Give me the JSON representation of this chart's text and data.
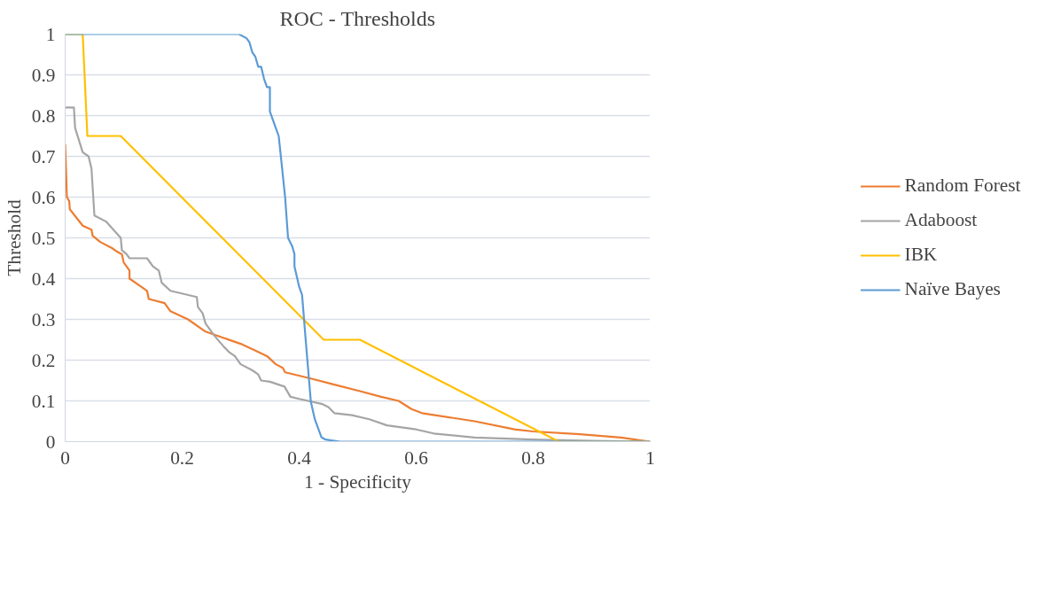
{
  "chart_data": {
    "type": "line",
    "title": "ROC - Thresholds",
    "xlabel": "1 - Specificity",
    "ylabel": "Threshold",
    "xlim": [
      0,
      1
    ],
    "ylim": [
      0,
      1
    ],
    "xticks": [
      0,
      0.2,
      0.4,
      0.6,
      0.8,
      1
    ],
    "yticks": [
      0,
      0.1,
      0.2,
      0.3,
      0.4,
      0.5,
      0.6,
      0.7,
      0.8,
      0.9,
      1
    ],
    "grid": "y",
    "legend": "right",
    "line_style": "solid",
    "series": [
      {
        "name": "Random Forest",
        "color": "#ed7d31",
        "x": [
          0,
          0.003,
          0.007,
          0.008,
          0.03,
          0.045,
          0.047,
          0.06,
          0.08,
          0.09,
          0.097,
          0.1,
          0.11,
          0.11,
          0.13,
          0.14,
          0.143,
          0.17,
          0.18,
          0.21,
          0.24,
          0.27,
          0.3,
          0.33,
          0.345,
          0.36,
          0.372,
          0.376,
          0.42,
          0.46,
          0.504,
          0.54,
          0.57,
          0.592,
          0.61,
          0.7,
          0.768,
          0.8,
          0.88,
          0.95,
          1
        ],
        "values": [
          0.73,
          0.6,
          0.59,
          0.57,
          0.53,
          0.52,
          0.505,
          0.49,
          0.475,
          0.465,
          0.46,
          0.44,
          0.42,
          0.4,
          0.38,
          0.37,
          0.35,
          0.34,
          0.32,
          0.3,
          0.27,
          0.255,
          0.24,
          0.22,
          0.21,
          0.19,
          0.181,
          0.17,
          0.155,
          0.14,
          0.124,
          0.11,
          0.1,
          0.08,
          0.07,
          0.05,
          0.03,
          0.025,
          0.018,
          0.01,
          0
        ]
      },
      {
        "name": "Adaboost",
        "color": "#a5a5a5",
        "x": [
          0,
          0.015,
          0.017,
          0.03,
          0.04,
          0.045,
          0.05,
          0.07,
          0.095,
          0.097,
          0.105,
          0.11,
          0.14,
          0.15,
          0.16,
          0.165,
          0.18,
          0.225,
          0.227,
          0.235,
          0.24,
          0.255,
          0.27,
          0.28,
          0.29,
          0.3,
          0.32,
          0.33,
          0.335,
          0.35,
          0.375,
          0.385,
          0.4,
          0.44,
          0.45,
          0.46,
          0.49,
          0.52,
          0.55,
          0.6,
          0.63,
          0.7,
          0.8,
          0.9,
          1
        ],
        "values": [
          0.82,
          0.82,
          0.77,
          0.71,
          0.7,
          0.67,
          0.555,
          0.54,
          0.5,
          0.47,
          0.46,
          0.45,
          0.45,
          0.43,
          0.42,
          0.39,
          0.37,
          0.355,
          0.33,
          0.315,
          0.29,
          0.26,
          0.235,
          0.22,
          0.21,
          0.19,
          0.175,
          0.165,
          0.15,
          0.147,
          0.135,
          0.11,
          0.105,
          0.092,
          0.085,
          0.07,
          0.065,
          0.055,
          0.04,
          0.03,
          0.02,
          0.01,
          0.005,
          0.002,
          0
        ]
      },
      {
        "name": "IBK",
        "color": "#ffc000",
        "x": [
          0,
          0.03,
          0.038,
          0.095,
          0.442,
          0.504,
          0.844,
          1
        ],
        "values": [
          1,
          1,
          0.75,
          0.75,
          0.25,
          0.25,
          0,
          0
        ]
      },
      {
        "name": "Naïve Bayes",
        "color": "#5b9bd5",
        "x": [
          0,
          0.297,
          0.31,
          0.315,
          0.32,
          0.325,
          0.33,
          0.335,
          0.34,
          0.345,
          0.35,
          0.35,
          0.36,
          0.365,
          0.368,
          0.376,
          0.381,
          0.388,
          0.392,
          0.392,
          0.4,
          0.405,
          0.412,
          0.42,
          0.427,
          0.438,
          0.445,
          0.455,
          0.47,
          1
        ],
        "values": [
          1,
          1,
          0.99,
          0.98,
          0.955,
          0.945,
          0.92,
          0.92,
          0.89,
          0.87,
          0.87,
          0.81,
          0.77,
          0.75,
          0.71,
          0.6,
          0.5,
          0.48,
          0.46,
          0.43,
          0.38,
          0.36,
          0.235,
          0.098,
          0.054,
          0.011,
          0.005,
          0.003,
          0,
          0
        ]
      }
    ]
  }
}
